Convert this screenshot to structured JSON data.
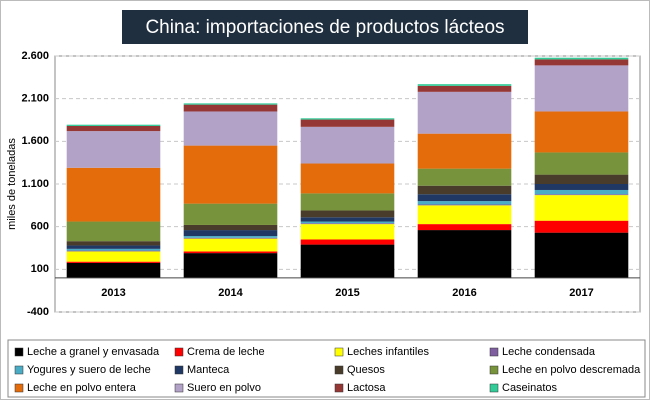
{
  "chart_data": {
    "type": "bar",
    "stacked": true,
    "title": "China: importaciones de productos lácteos",
    "y_label": "miles de toneladas",
    "categories": [
      "2013",
      "2014",
      "2015",
      "2016",
      "2017"
    ],
    "ylim": [
      -400,
      2600
    ],
    "yticks": [
      -400,
      100,
      600,
      {
        "value": 1100,
        "label": "1.100"
      },
      {
        "value": 1600,
        "label": "1.600"
      },
      {
        "value": 2100,
        "label": "2.100"
      },
      {
        "value": 2600,
        "label": "2.600"
      }
    ],
    "grid": true,
    "legend": "bottom",
    "series": [
      {
        "name": "Leche a granel y envasada",
        "color": "#000000",
        "values": [
          175,
          290,
          390,
          560,
          530
        ]
      },
      {
        "name": "Crema de leche",
        "color": "#ff0000",
        "values": [
          15,
          20,
          60,
          70,
          140
        ]
      },
      {
        "name": "Leches infantiles",
        "color": "#ffff00",
        "values": [
          120,
          150,
          180,
          220,
          300
        ]
      },
      {
        "name": "Leche condensada",
        "color": "#7f5fa0",
        "values": [
          10,
          10,
          10,
          10,
          10
        ]
      },
      {
        "name": "Yogures y suero de leche",
        "color": "#4bacc6",
        "values": [
          20,
          20,
          20,
          40,
          50
        ]
      },
      {
        "name": "Manteca",
        "color": "#1f3864",
        "values": [
          40,
          70,
          50,
          80,
          70
        ]
      },
      {
        "name": "Quesos",
        "color": "#4a3c2a",
        "values": [
          50,
          60,
          80,
          100,
          110
        ]
      },
      {
        "name": "Leche en polvo descremada",
        "color": "#77933c",
        "values": [
          230,
          250,
          200,
          200,
          260
        ]
      },
      {
        "name": "Leche en polvo entera",
        "color": "#e46c0a",
        "values": [
          630,
          680,
          350,
          410,
          480
        ]
      },
      {
        "name": "Suero en polvo",
        "color": "#b3a2c7",
        "values": [
          430,
          400,
          430,
          490,
          540
        ]
      },
      {
        "name": "Lactosa",
        "color": "#953735",
        "values": [
          60,
          80,
          85,
          70,
          70
        ]
      },
      {
        "name": "Caseinatos",
        "color": "#33cc99",
        "values": [
          15,
          15,
          15,
          20,
          20
        ]
      }
    ]
  }
}
